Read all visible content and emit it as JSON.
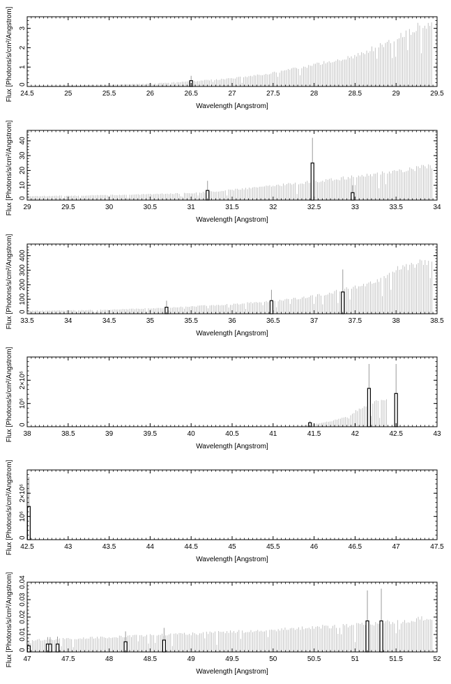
{
  "chart_data": [
    {
      "type": "bar",
      "xlabel": "Wavelength [Angstrom]",
      "ylabel": "Flux [Photons/s/cm²/Angstrom]",
      "xlim": [
        24.5,
        29.5
      ],
      "ylim": [
        0,
        3.6
      ],
      "x_ticks": [
        "24.5",
        "25",
        "25.5",
        "26",
        "26.5",
        "27",
        "27.5",
        "28",
        "28.5",
        "29",
        "29.5"
      ],
      "y_ticks": [
        "0",
        "1",
        "2",
        "3"
      ],
      "y_tick_values": [
        0,
        1,
        2,
        3
      ],
      "grey_bars": [
        {
          "x": 24.6,
          "y": 0.03
        },
        {
          "x": 25.0,
          "y": 0.06
        },
        {
          "x": 25.5,
          "y": 0.1
        },
        {
          "x": 26.0,
          "y": 0.16
        },
        {
          "x": 26.5,
          "y": 0.28
        },
        {
          "x": 27.0,
          "y": 0.45
        },
        {
          "x": 27.5,
          "y": 0.75
        },
        {
          "x": 28.0,
          "y": 1.2
        },
        {
          "x": 28.5,
          "y": 1.7
        },
        {
          "x": 29.0,
          "y": 2.6
        },
        {
          "x": 29.25,
          "y": 3.3
        },
        {
          "x": 29.45,
          "y": 3.35
        }
      ],
      "highlighted_bars": [
        {
          "x": 26.5,
          "y": 0.3,
          "err": 0.55
        }
      ]
    },
    {
      "type": "bar",
      "xlabel": "Wavelength [Angstrom]",
      "ylabel": "Flux [Photons/s/cm²/Angstrom]",
      "xlim": [
        29,
        34
      ],
      "ylim": [
        0,
        47
      ],
      "x_ticks": [
        "29",
        "29.5",
        "30",
        "30.5",
        "31",
        "31.5",
        "32",
        "32.5",
        "33",
        "33.5",
        "34"
      ],
      "y_ticks": [
        "0",
        "10",
        "20",
        "30",
        "40"
      ],
      "y_tick_values": [
        0,
        10,
        20,
        30,
        40
      ],
      "grey_bars": [
        {
          "x": 29.0,
          "y": 2.8
        },
        {
          "x": 29.5,
          "y": 3.2
        },
        {
          "x": 30.0,
          "y": 3.6
        },
        {
          "x": 30.5,
          "y": 4.3
        },
        {
          "x": 31.0,
          "y": 5.0
        },
        {
          "x": 31.5,
          "y": 7.5
        },
        {
          "x": 32.0,
          "y": 10.5
        },
        {
          "x": 32.5,
          "y": 13.5
        },
        {
          "x": 33.0,
          "y": 17.0
        },
        {
          "x": 33.5,
          "y": 21.0
        },
        {
          "x": 33.95,
          "y": 25.0
        }
      ],
      "highlighted_bars": [
        {
          "x": 31.2,
          "y": 6.5,
          "err": 13
        },
        {
          "x": 32.48,
          "y": 25,
          "err": 42
        },
        {
          "x": 32.97,
          "y": 5,
          "err": 10
        }
      ]
    },
    {
      "type": "bar",
      "xlabel": "Wavelength [Angstrom]",
      "ylabel": "Flux [Photons/s/cm²/Angstrom]",
      "xlim": [
        33.5,
        38.5
      ],
      "ylim": [
        0,
        480
      ],
      "x_ticks": [
        "33.5",
        "34",
        "34.5",
        "35",
        "35.5",
        "36",
        "36.5",
        "37",
        "37.5",
        "38",
        "38.5"
      ],
      "y_ticks": [
        "0",
        "100",
        "200",
        "300",
        "400"
      ],
      "y_tick_values": [
        0,
        100,
        200,
        300,
        400
      ],
      "grey_bars": [
        {
          "x": 33.5,
          "y": 22
        },
        {
          "x": 34.0,
          "y": 25
        },
        {
          "x": 34.5,
          "y": 30
        },
        {
          "x": 35.0,
          "y": 40
        },
        {
          "x": 35.5,
          "y": 55
        },
        {
          "x": 36.0,
          "y": 70
        },
        {
          "x": 36.5,
          "y": 95
        },
        {
          "x": 37.0,
          "y": 130
        },
        {
          "x": 37.5,
          "y": 200
        },
        {
          "x": 37.8,
          "y": 250
        },
        {
          "x": 38.0,
          "y": 330
        },
        {
          "x": 38.45,
          "y": 400
        }
      ],
      "highlighted_bars": [
        {
          "x": 35.2,
          "y": 45,
          "err": 90
        },
        {
          "x": 36.48,
          "y": 90,
          "err": 165
        },
        {
          "x": 37.35,
          "y": 150,
          "err": 305
        }
      ]
    },
    {
      "type": "bar",
      "xlabel": "Wavelength [Angstrom]",
      "ylabel": "Flux [Photons/s/cm²/Angstrom]",
      "xlim": [
        38,
        43
      ],
      "ylim": [
        0,
        3000000
      ],
      "x_ticks": [
        "38",
        "38.5",
        "39",
        "39.5",
        "40",
        "40.5",
        "41",
        "41.5",
        "42",
        "42.5",
        "43"
      ],
      "y_ticks": [
        "0",
        "10⁶",
        "2×10⁶"
      ],
      "y_tick_values": [
        0,
        1000000,
        2000000
      ],
      "grey_bars": [
        {
          "x": 41.3,
          "y": 30000
        },
        {
          "x": 41.5,
          "y": 120000
        },
        {
          "x": 41.7,
          "y": 250000
        },
        {
          "x": 41.9,
          "y": 450000
        },
        {
          "x": 42.0,
          "y": 700000
        },
        {
          "x": 42.2,
          "y": 1100000
        },
        {
          "x": 42.4,
          "y": 1300000
        }
      ],
      "highlighted_bars": [
        {
          "x": 41.45,
          "y": 170000,
          "err": 250000
        },
        {
          "x": 42.17,
          "y": 1650000,
          "err": 2700000
        },
        {
          "x": 42.5,
          "y": 1430000,
          "err": 2700000
        }
      ]
    },
    {
      "type": "bar",
      "xlabel": "Wavelength [Angstrom]",
      "ylabel": "Flux [Photons/s/cm²/Angstrom]",
      "xlim": [
        42.5,
        47.5
      ],
      "ylim": [
        0,
        3000000
      ],
      "x_ticks": [
        "42.5",
        "43",
        "43.5",
        "44",
        "44.5",
        "45",
        "45.5",
        "46",
        "46.5",
        "47",
        "47.5"
      ],
      "y_ticks": [
        "0",
        "10⁶",
        "2×10⁶"
      ],
      "y_tick_values": [
        0,
        1000000,
        2000000
      ],
      "grey_bars": [],
      "highlighted_bars": [
        {
          "x": 42.52,
          "y": 1430000,
          "err": 2700000
        }
      ]
    },
    {
      "type": "bar",
      "xlabel": "Wavelength [Angstrom]",
      "ylabel": "Flux [Photons/s/cm²/Angstrom]",
      "xlim": [
        47,
        52
      ],
      "ylim": [
        0,
        0.04
      ],
      "x_ticks": [
        "47",
        "47.5",
        "48",
        "48.5",
        "49",
        "49.5",
        "50",
        "50.5",
        "51",
        "51.5",
        "52"
      ],
      "y_ticks": [
        "0",
        "0.01",
        "0.02",
        "0.03",
        "0.04"
      ],
      "y_tick_values": [
        0,
        0.01,
        0.02,
        0.03,
        0.04
      ],
      "grey_bars": [
        {
          "x": 47.0,
          "y": 0.0072
        },
        {
          "x": 47.5,
          "y": 0.0082
        },
        {
          "x": 48.0,
          "y": 0.0092
        },
        {
          "x": 48.5,
          "y": 0.0102
        },
        {
          "x": 49.0,
          "y": 0.0112
        },
        {
          "x": 49.5,
          "y": 0.0124
        },
        {
          "x": 50.0,
          "y": 0.0138
        },
        {
          "x": 50.5,
          "y": 0.0152
        },
        {
          "x": 51.0,
          "y": 0.0168
        },
        {
          "x": 51.5,
          "y": 0.0188
        },
        {
          "x": 51.95,
          "y": 0.0212
        }
      ],
      "highlighted_bars": [
        {
          "x": 47.02,
          "y": 0.0035,
          "err": 0.005
        },
        {
          "x": 47.25,
          "y": 0.0045,
          "err": 0.0085
        },
        {
          "x": 47.28,
          "y": 0.0045,
          "err": 0.0085
        },
        {
          "x": 47.37,
          "y": 0.0045,
          "err": 0.0088
        },
        {
          "x": 48.2,
          "y": 0.0058,
          "err": 0.0118
        },
        {
          "x": 48.67,
          "y": 0.0068,
          "err": 0.0138
        },
        {
          "x": 51.15,
          "y": 0.0178,
          "err": 0.0353
        },
        {
          "x": 51.32,
          "y": 0.0178,
          "err": 0.0363
        }
      ]
    }
  ]
}
